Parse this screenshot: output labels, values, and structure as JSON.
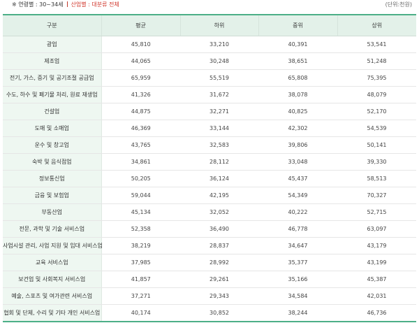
{
  "filters": {
    "prefix": "※ 연령별 : 30~34세",
    "industry": "산업별 : 대분류 전체"
  },
  "unit": "(단위:천원)",
  "table": {
    "headers": [
      "구분",
      "평균",
      "하위",
      "중위",
      "상위"
    ],
    "rows": [
      {
        "category": "광업",
        "values": [
          "45,810",
          "33,210",
          "40,391",
          "53,541"
        ]
      },
      {
        "category": "제조업",
        "values": [
          "44,065",
          "30,248",
          "38,651",
          "51,248"
        ]
      },
      {
        "category": "전기, 가스, 증기 및 공기조절 공급업",
        "values": [
          "65,959",
          "55,519",
          "65,808",
          "75,395"
        ]
      },
      {
        "category": "수도, 하수 및 폐기물 처리, 원료 재생업",
        "values": [
          "41,326",
          "31,672",
          "38,078",
          "48,079"
        ]
      },
      {
        "category": "건설업",
        "values": [
          "44,875",
          "32,271",
          "40,825",
          "52,170"
        ]
      },
      {
        "category": "도매 및 소매업",
        "values": [
          "46,369",
          "33,144",
          "42,302",
          "54,539"
        ]
      },
      {
        "category": "운수 및 창고업",
        "values": [
          "43,765",
          "32,583",
          "39,806",
          "50,141"
        ]
      },
      {
        "category": "숙박 및 음식점업",
        "values": [
          "34,861",
          "28,112",
          "33,048",
          "39,330"
        ]
      },
      {
        "category": "정보통신업",
        "values": [
          "50,205",
          "36,124",
          "45,437",
          "58,513"
        ]
      },
      {
        "category": "금융 및 보험업",
        "values": [
          "59,044",
          "42,195",
          "54,349",
          "70,327"
        ]
      },
      {
        "category": "부동산업",
        "values": [
          "45,134",
          "32,052",
          "40,222",
          "52,715"
        ]
      },
      {
        "category": "전문, 과학 및 기술 서비스업",
        "values": [
          "52,358",
          "36,490",
          "46,778",
          "63,097"
        ]
      },
      {
        "category": "사업시설 관리, 사업 지원 및 임대 서비스업",
        "values": [
          "38,219",
          "28,837",
          "34,647",
          "43,179"
        ]
      },
      {
        "category": "교육 서비스업",
        "values": [
          "37,985",
          "28,992",
          "35,377",
          "43,199"
        ]
      },
      {
        "category": "보건업 및 사회복지 서비스업",
        "values": [
          "41,857",
          "29,261",
          "35,166",
          "45,387"
        ]
      },
      {
        "category": "예술, 스포츠 및 여가관련 서비스업",
        "values": [
          "37,271",
          "29,343",
          "34,584",
          "42,031"
        ]
      },
      {
        "category": "협회 및 단체, 수리 및 기타 개인 서비스업",
        "values": [
          "40,174",
          "30,852",
          "38,244",
          "46,736"
        ]
      }
    ]
  }
}
